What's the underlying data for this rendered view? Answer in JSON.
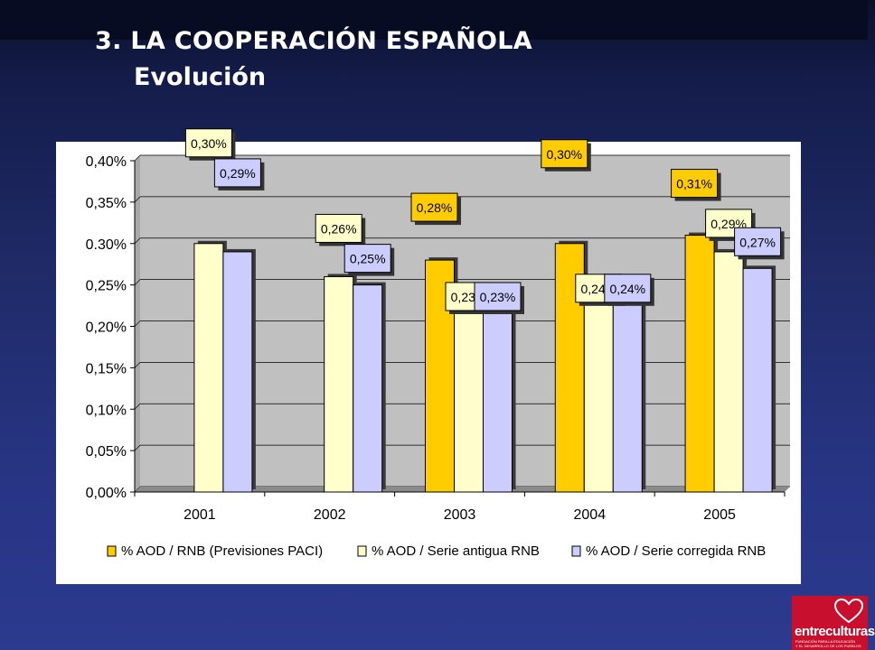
{
  "slide": {
    "title": "3. LA COOPERACIÓN ESPAÑOLA",
    "subtitle": "Evolución"
  },
  "logo": {
    "text": "entreculturas",
    "tagline_1": "FUNDACIÓN PARA LA EDUCACIÓN",
    "tagline_2": "Y EL DESARROLLO DE LOS PUEBLOS",
    "icon": "heart-icon",
    "color": "#c8102e"
  },
  "chart_data": {
    "type": "bar",
    "categories": [
      "2001",
      "2002",
      "2003",
      "2004",
      "2005"
    ],
    "ylim": [
      0,
      0.4
    ],
    "yticks": [
      "0,00%",
      "0,05%",
      "0,10%",
      "0,15%",
      "0,20%",
      "0,25%",
      "0.30%",
      "0,35%",
      "0,40%"
    ],
    "grid": true,
    "legend_position": "bottom",
    "series": [
      {
        "name": "% AOD / RNB (Previsiones PACI)",
        "color": "#ffcc00",
        "values": [
          null,
          null,
          0.28,
          0.3,
          0.31
        ],
        "labels": [
          null,
          null,
          "0,28%",
          "0,30%",
          "0,31%"
        ]
      },
      {
        "name": "% AOD / Serie antigua RNB",
        "color": "#ffffcc",
        "values": [
          0.3,
          0.26,
          0.23,
          0.24,
          0.29
        ],
        "labels": [
          "0,30%",
          "0,26%",
          "0,23%",
          "0,24%",
          "0,29%"
        ]
      },
      {
        "name": "% AOD / Serie corregida RNB",
        "color": "#ccccff",
        "values": [
          0.29,
          0.25,
          0.23,
          0.24,
          0.27
        ],
        "labels": [
          "0,29%",
          "0,25%",
          "0,23%",
          "0,24%",
          "0,27%"
        ]
      }
    ]
  }
}
